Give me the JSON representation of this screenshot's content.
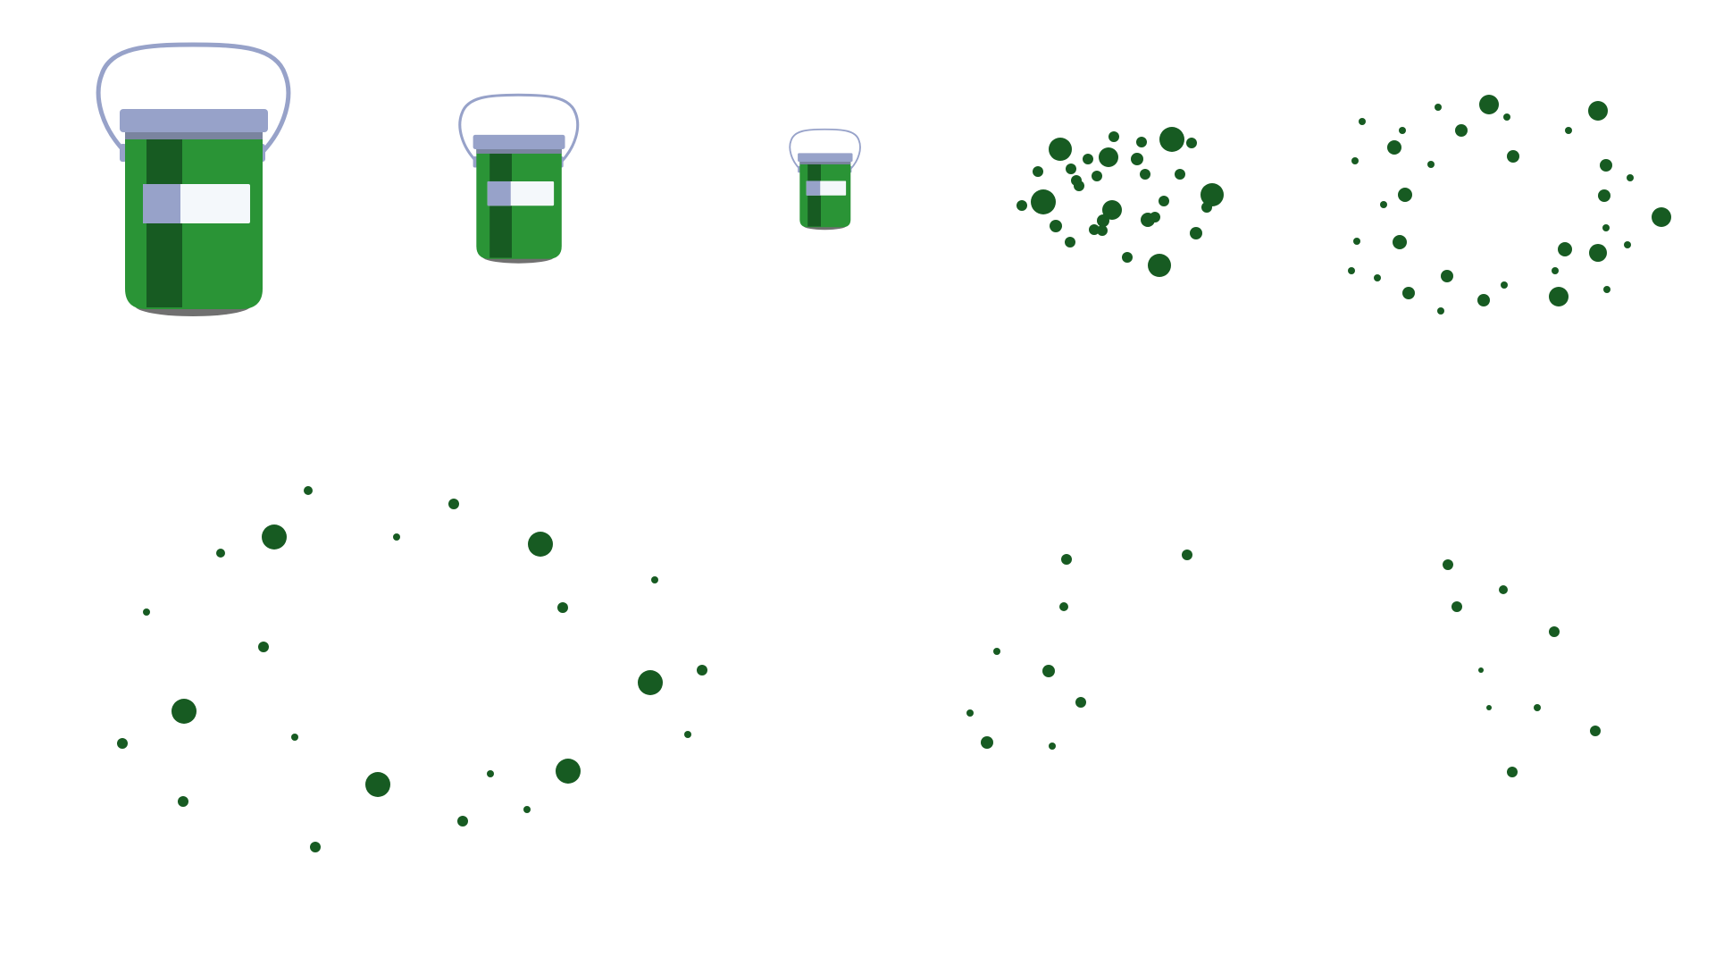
{
  "sprite_sheet": {
    "colors": {
      "background": "#ffffff",
      "handle": "#97a2c9",
      "lid": "#97a2c9",
      "lid_shadow": "#7a849f",
      "body": "#2a9436",
      "body_stripe": "#175b22",
      "label": "#f4f8fb",
      "label_tab": "#97a2c9",
      "base_shadow": "#707070",
      "particle": "#175b22"
    },
    "bucket_frames": [
      {
        "name": "bucket-frame-large",
        "icon": "paint-bucket-icon",
        "scale": 1.0
      },
      {
        "name": "bucket-frame-medium",
        "icon": "paint-bucket-icon",
        "scale": 0.62
      },
      {
        "name": "bucket-frame-small",
        "icon": "paint-bucket-icon",
        "scale": 0.37
      }
    ],
    "burst_frames": [
      {
        "name": "burst-frame-1",
        "icon": "splatter-particles-icon"
      },
      {
        "name": "burst-frame-2",
        "icon": "splatter-particles-icon"
      },
      {
        "name": "burst-frame-3",
        "icon": "splatter-particles-icon"
      },
      {
        "name": "burst-frame-4",
        "icon": "splatter-particles-icon"
      },
      {
        "name": "burst-frame-5",
        "icon": "splatter-particles-icon"
      }
    ]
  }
}
